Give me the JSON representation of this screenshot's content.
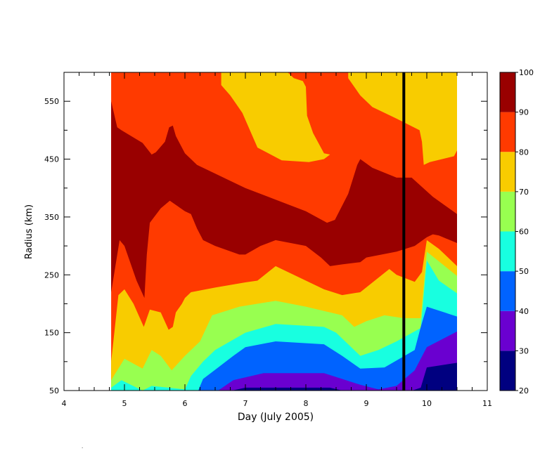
{
  "chart_data": {
    "type": "heatmap",
    "subtype": "filled-contour",
    "xlabel": "Day (July 2005)",
    "ylabel": "Radius (km)",
    "xlim": [
      4,
      11
    ],
    "ylim": [
      50,
      600
    ],
    "x_tick_labels": [
      "4",
      "5",
      "6",
      "7",
      "8",
      "9",
      "10",
      "11"
    ],
    "y_tick_labels": [
      "50",
      "150",
      "250",
      "350",
      "450",
      "550"
    ],
    "data_x_range": [
      4.78,
      10.5
    ],
    "vertical_marker_x": 9.62,
    "colorbar": {
      "levels": [
        20,
        30,
        40,
        50,
        60,
        70,
        80,
        90,
        100
      ],
      "tick_labels": [
        "20",
        "30",
        "40",
        "50",
        "60",
        "70",
        "80",
        "90",
        "100"
      ],
      "colors": [
        "#000080",
        "#6a00d0",
        "#0063ff",
        "#18ffe0",
        "#98ff50",
        "#f8cc00",
        "#ff3a00",
        "#990000"
      ]
    },
    "contour_boundaries": [
      {
        "level": 90,
        "upper": [
          [
            4.78,
            550
          ],
          [
            4.88,
            505
          ],
          [
            4.95,
            500
          ],
          [
            5.3,
            478
          ],
          [
            5.45,
            458
          ],
          [
            5.52,
            462
          ],
          [
            5.67,
            480
          ],
          [
            5.74,
            505
          ],
          [
            5.8,
            508
          ],
          [
            5.85,
            490
          ],
          [
            6,
            460
          ],
          [
            6.2,
            440
          ],
          [
            6.6,
            420
          ],
          [
            7,
            400
          ],
          [
            7.5,
            380
          ],
          [
            8,
            360
          ],
          [
            8.35,
            340
          ],
          [
            8.48,
            345
          ],
          [
            8.7,
            390
          ],
          [
            8.85,
            440
          ],
          [
            8.9,
            450
          ],
          [
            9.1,
            435
          ],
          [
            9.5,
            418
          ],
          [
            9.75,
            418
          ],
          [
            10.1,
            385
          ],
          [
            10.5,
            355
          ]
        ],
        "lower": [
          [
            4.78,
            220
          ],
          [
            4.92,
            310
          ],
          [
            5,
            300
          ],
          [
            5.2,
            240
          ],
          [
            5.33,
            210
          ],
          [
            5.37,
            285
          ],
          [
            5.42,
            340
          ],
          [
            5.6,
            365
          ],
          [
            5.75,
            378
          ],
          [
            6,
            360
          ],
          [
            6.1,
            355
          ],
          [
            6.2,
            330
          ],
          [
            6.3,
            310
          ],
          [
            6.5,
            300
          ],
          [
            6.9,
            285
          ],
          [
            7,
            285
          ],
          [
            7.25,
            300
          ],
          [
            7.5,
            310
          ],
          [
            8,
            300
          ],
          [
            8.25,
            280
          ],
          [
            8.4,
            265
          ],
          [
            8.6,
            268
          ],
          [
            8.9,
            272
          ],
          [
            9,
            280
          ],
          [
            9.5,
            290
          ],
          [
            9.8,
            300
          ],
          [
            10,
            315
          ],
          [
            10.1,
            320
          ],
          [
            10.2,
            318
          ],
          [
            10.5,
            305
          ]
        ]
      },
      {
        "level": 80,
        "lower": [
          [
            4.78,
            100
          ],
          [
            4.9,
            215
          ],
          [
            5,
            225
          ],
          [
            5.15,
            200
          ],
          [
            5.32,
            160
          ],
          [
            5.42,
            190
          ],
          [
            5.6,
            185
          ],
          [
            5.73,
            155
          ],
          [
            5.8,
            160
          ],
          [
            5.85,
            185
          ],
          [
            5.95,
            200
          ],
          [
            6,
            210
          ],
          [
            6.1,
            220
          ],
          [
            6.5,
            228
          ],
          [
            7,
            237
          ],
          [
            7.2,
            240
          ],
          [
            7.5,
            265
          ],
          [
            8,
            240
          ],
          [
            8.3,
            225
          ],
          [
            8.6,
            215
          ],
          [
            8.9,
            220
          ],
          [
            9.2,
            245
          ],
          [
            9.38,
            260
          ],
          [
            9.5,
            250
          ],
          [
            9.8,
            238
          ],
          [
            9.92,
            255
          ],
          [
            10,
            310
          ],
          [
            10.2,
            295
          ],
          [
            10.3,
            285
          ],
          [
            10.5,
            265
          ]
        ]
      },
      {
        "level": 70,
        "lower": [
          [
            4.78,
            68
          ],
          [
            5,
            105
          ],
          [
            5.3,
            88
          ],
          [
            5.45,
            120
          ],
          [
            5.6,
            110
          ],
          [
            5.78,
            85
          ],
          [
            6,
            110
          ],
          [
            6.25,
            135
          ],
          [
            6.45,
            180
          ],
          [
            6.9,
            195
          ],
          [
            7.5,
            205
          ],
          [
            8,
            195
          ],
          [
            8.4,
            185
          ],
          [
            8.6,
            180
          ],
          [
            8.8,
            160
          ],
          [
            9,
            170
          ],
          [
            9.3,
            180
          ],
          [
            9.62,
            175
          ],
          [
            9.9,
            175
          ],
          [
            10,
            290
          ],
          [
            10.5,
            248
          ]
        ]
      },
      {
        "level": 60,
        "lower": [
          [
            4.78,
            55
          ],
          [
            4.95,
            68
          ],
          [
            5.3,
            50
          ],
          [
            5.45,
            58
          ],
          [
            6,
            52
          ],
          [
            6.1,
            75
          ],
          [
            6.3,
            100
          ],
          [
            6.5,
            120
          ],
          [
            7,
            150
          ],
          [
            7.5,
            165
          ],
          [
            8.3,
            160
          ],
          [
            8.5,
            150
          ],
          [
            8.7,
            130
          ],
          [
            8.9,
            110
          ],
          [
            9.2,
            120
          ],
          [
            9.5,
            135
          ],
          [
            9.9,
            158
          ],
          [
            10,
            275
          ],
          [
            10.2,
            240
          ],
          [
            10.5,
            218
          ]
        ]
      },
      {
        "level": 50,
        "lower": [
          [
            6.22,
            50
          ],
          [
            6.3,
            70
          ],
          [
            6.55,
            90
          ],
          [
            6.8,
            110
          ],
          [
            7,
            125
          ],
          [
            7.5,
            135
          ],
          [
            8.3,
            130
          ],
          [
            8.6,
            110
          ],
          [
            8.9,
            88
          ],
          [
            9.3,
            90
          ],
          [
            9.8,
            120
          ],
          [
            9.9,
            160
          ],
          [
            10,
            195
          ],
          [
            10.5,
            178
          ]
        ]
      },
      {
        "level": 40,
        "lower": [
          [
            6.55,
            50
          ],
          [
            6.8,
            68
          ],
          [
            7.3,
            80
          ],
          [
            8.3,
            80
          ],
          [
            8.6,
            70
          ],
          [
            8.9,
            60
          ],
          [
            9.2,
            52
          ],
          [
            9.5,
            58
          ],
          [
            9.8,
            85
          ],
          [
            10,
            125
          ],
          [
            10.5,
            152
          ]
        ]
      },
      {
        "level": 30,
        "lower": [
          [
            6.78,
            50
          ],
          [
            7,
            55
          ],
          [
            8.4,
            55
          ],
          [
            8.6,
            50
          ],
          [
            9.76,
            50
          ],
          [
            9.9,
            55
          ],
          [
            10,
            90
          ],
          [
            10.5,
            98
          ]
        ]
      }
    ]
  }
}
